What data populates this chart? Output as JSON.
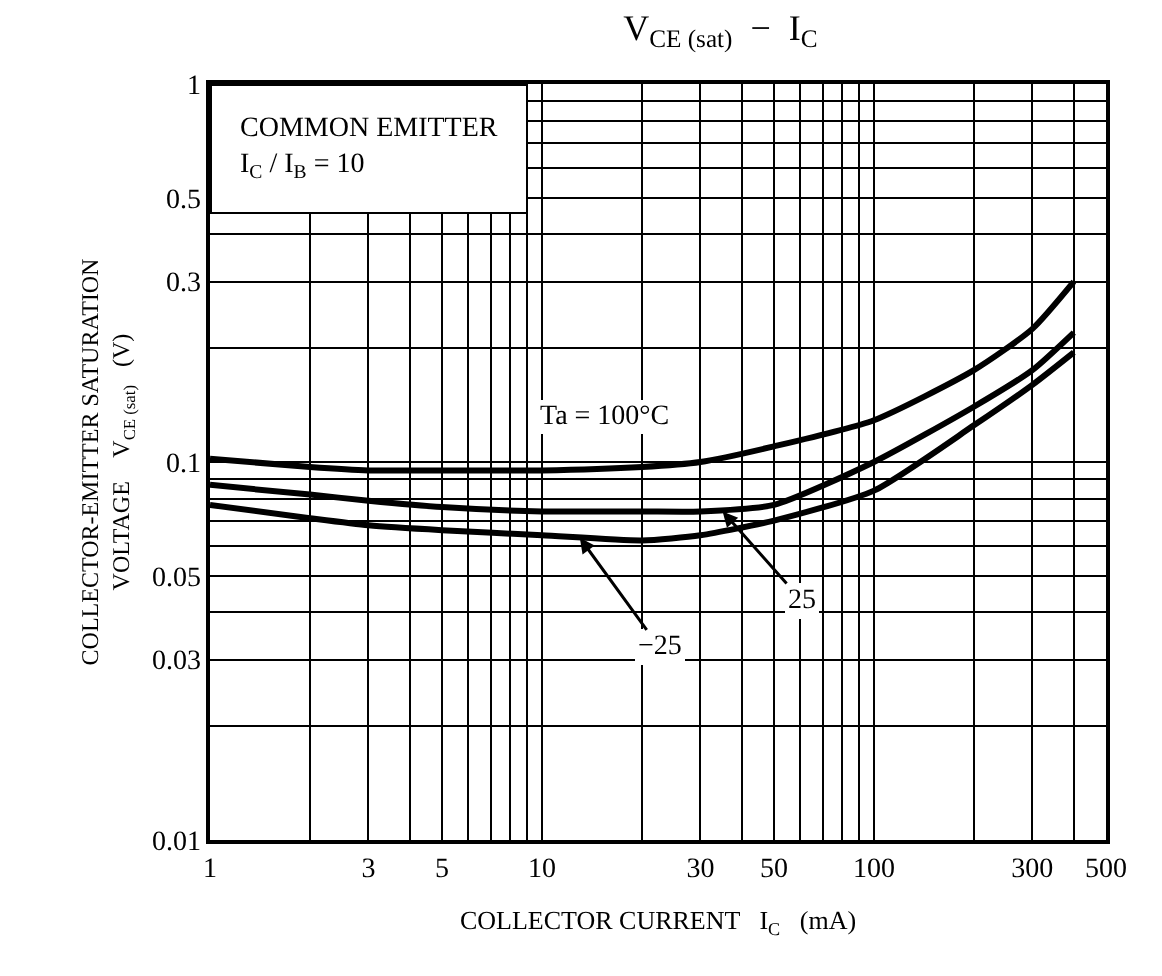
{
  "chart_data": {
    "type": "line",
    "title": "V$_{CE (sat)}$  −  I$_{C}$",
    "xlabel": "COLLECTOR CURRENT   I$_{C}$   (mA)",
    "ylabel": "COLLECTOR-EMITTER SATURATION\nVOLTAGE    V$_{CE (sat)}$   (V)",
    "log": "xy",
    "grid": true,
    "marker": "none",
    "line_style": "solid",
    "xlim": [
      1,
      500
    ],
    "ylim": [
      0.01,
      1
    ],
    "xticks": [
      1,
      {
        "value": 2,
        "label": null
      },
      3,
      {
        "value": 4,
        "label": null
      },
      5,
      {
        "value": 6,
        "label": null
      },
      {
        "value": 7,
        "label": null
      },
      {
        "value": 8,
        "label": null
      },
      {
        "value": 9,
        "label": null
      },
      10,
      {
        "value": 20,
        "label": null
      },
      30,
      {
        "value": 40,
        "label": null
      },
      50,
      {
        "value": 60,
        "label": null
      },
      {
        "value": 70,
        "label": null
      },
      {
        "value": 80,
        "label": null
      },
      {
        "value": 90,
        "label": null
      },
      100,
      {
        "value": 200,
        "label": null
      },
      300,
      {
        "value": 400,
        "label": null
      },
      500
    ],
    "yticks": [
      0.01,
      {
        "value": 0.02,
        "label": null
      },
      0.03,
      {
        "value": 0.04,
        "label": null
      },
      0.05,
      {
        "value": 0.06,
        "label": null
      },
      {
        "value": 0.07,
        "label": null
      },
      {
        "value": 0.08,
        "label": null
      },
      {
        "value": 0.09,
        "label": null
      },
      0.1,
      {
        "value": 0.2,
        "label": null
      },
      0.3,
      {
        "value": 0.4,
        "label": null
      },
      0.5,
      {
        "value": 0.6,
        "label": null
      },
      {
        "value": 0.7,
        "label": null
      },
      {
        "value": 0.8,
        "label": null
      },
      {
        "value": 0.9,
        "label": null
      },
      1
    ],
    "series": [
      {
        "color": "#000000",
        "x": [
          1,
          2,
          3,
          5,
          10,
          20,
          30,
          50,
          100,
          200,
          300,
          400
        ],
        "values": [
          0.102,
          0.097,
          0.095,
          0.095,
          0.095,
          0.097,
          0.1,
          0.11,
          0.129,
          0.175,
          0.225,
          0.3
        ]
      },
      {
        "color": "#000000",
        "x": [
          1,
          2,
          3,
          5,
          10,
          20,
          30,
          50,
          100,
          200,
          300,
          400
        ],
        "values": [
          0.087,
          0.082,
          0.079,
          0.076,
          0.074,
          0.074,
          0.074,
          0.077,
          0.1,
          0.14,
          0.175,
          0.22
        ]
      },
      {
        "color": "#000000",
        "x": [
          1,
          2,
          3,
          5,
          10,
          20,
          30,
          50,
          100,
          200,
          300,
          400
        ],
        "values": [
          0.077,
          0.071,
          0.068,
          0.066,
          0.064,
          0.062,
          0.064,
          0.07,
          0.084,
          0.125,
          0.16,
          0.195
        ]
      }
    ],
    "annotations": [
      "Ta = 100°C",
      {
        "text": "25",
        "x": 35,
        "y": 0.074
      },
      {
        "text": "−25",
        "x": 13,
        "y": 0.063
      },
      "COMMON EMITTER\nI$_{C}$ / I$_{B}$ = 10"
    ]
  }
}
